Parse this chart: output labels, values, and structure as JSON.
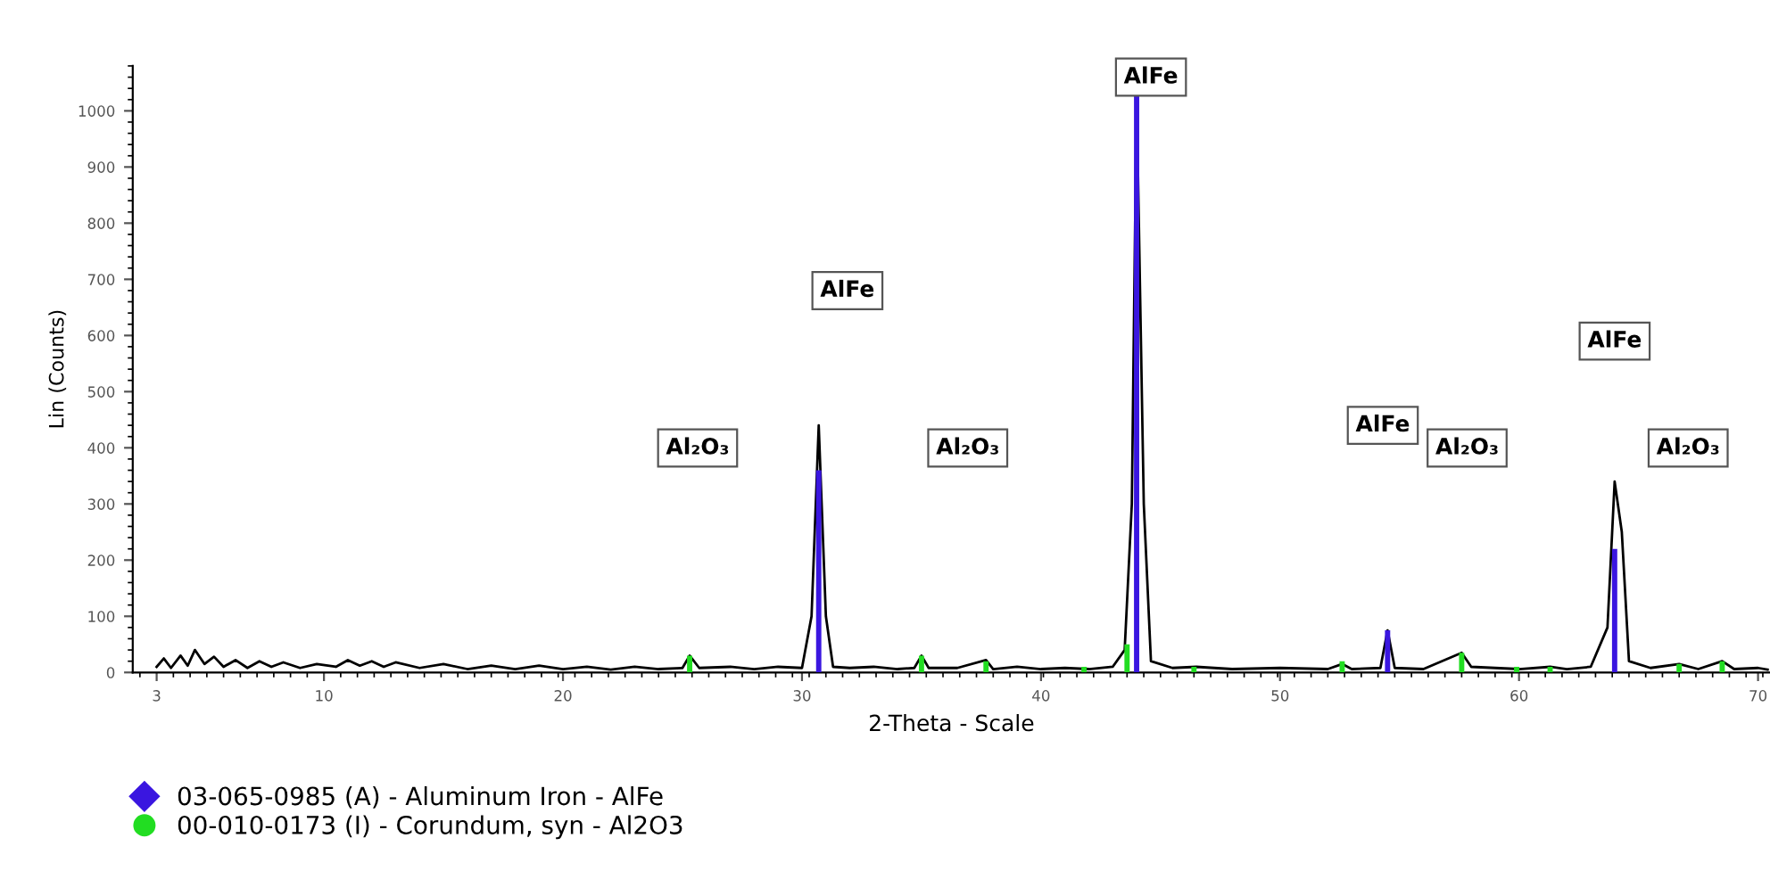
{
  "chart_data": {
    "type": "line",
    "xlabel": "2-Theta - Scale",
    "ylabel": "Lin (Counts)",
    "xlim": [
      2,
      70.5
    ],
    "ylim": [
      0,
      1080
    ],
    "xticks": [
      3,
      10,
      20,
      30,
      40,
      50,
      60,
      70
    ],
    "yticks": [
      0,
      100,
      200,
      300,
      400,
      500,
      600,
      700,
      800,
      900,
      1000
    ],
    "grid": false,
    "legend": "bottom left",
    "marker": "none",
    "line_style": "solid",
    "series": [
      {
        "color": "#000000",
        "x": [
          3,
          3.3,
          3.6,
          4,
          4.3,
          4.6,
          5,
          5.4,
          5.8,
          6.3,
          6.8,
          7.3,
          7.8,
          8.3,
          9,
          9.7,
          10.5,
          11,
          11.5,
          12,
          12.5,
          13,
          14,
          15,
          16,
          17,
          18,
          19,
          20,
          21,
          22,
          23,
          24,
          25,
          25.3,
          25.7,
          27,
          28,
          29,
          30,
          30.4,
          30.7,
          31.0,
          31.3,
          32,
          33,
          34,
          34.7,
          35.0,
          35.3,
          36.5,
          37.7,
          38,
          39,
          40,
          41,
          42,
          43,
          43.5,
          43.8,
          44.0,
          44.3,
          44.6,
          45.5,
          46.5,
          48,
          50,
          52,
          52.6,
          53,
          54.2,
          54.5,
          54.8,
          56,
          57.6,
          58,
          59,
          60,
          61.3,
          62,
          63,
          63.7,
          64.0,
          64.3,
          64.6,
          65.5,
          66.7,
          67.5,
          68.5,
          69,
          70,
          70.4
        ],
        "values": [
          10,
          25,
          8,
          30,
          12,
          40,
          15,
          28,
          10,
          22,
          8,
          20,
          10,
          18,
          8,
          15,
          10,
          22,
          12,
          20,
          10,
          18,
          8,
          15,
          6,
          12,
          6,
          12,
          6,
          10,
          5,
          10,
          6,
          8,
          30,
          8,
          10,
          6,
          10,
          8,
          100,
          440,
          100,
          10,
          8,
          10,
          6,
          8,
          30,
          8,
          8,
          22,
          6,
          10,
          6,
          8,
          6,
          10,
          40,
          300,
          1030,
          300,
          20,
          8,
          10,
          6,
          8,
          6,
          15,
          6,
          8,
          75,
          8,
          6,
          35,
          10,
          8,
          6,
          10,
          6,
          10,
          80,
          340,
          250,
          20,
          8,
          15,
          6,
          20,
          6,
          8,
          5
        ]
      },
      {
        "type": "bar",
        "name": "03-065-0985 (A) - Aluminum Iron - AlFe",
        "color": "#3a16e0",
        "marker": "diamond",
        "x": [
          30.7,
          44.0,
          54.5,
          64.0
        ],
        "values": [
          360,
          1030,
          75,
          220
        ]
      },
      {
        "type": "bar",
        "name": "00-010-0173 (I) - Corundum, syn - Al2O3",
        "color": "#22dd22",
        "marker": "circle",
        "x": [
          25.3,
          35.0,
          37.7,
          41.8,
          43.6,
          46.4,
          52.6,
          57.6,
          59.9,
          61.3,
          66.7,
          68.5
        ],
        "values": [
          30,
          30,
          20,
          10,
          50,
          10,
          20,
          35,
          10,
          10,
          15,
          20
        ]
      }
    ],
    "annotations": [
      "Al₂O₃",
      {
        "text": "AlFe",
        "x": 31.9,
        "y": 680
      },
      "Al₂O₃",
      {
        "text": "AlFe",
        "x": 44.6,
        "y": 1060
      },
      {
        "text": "AlFe",
        "x": 54.3,
        "y": 440
      },
      "Al₂O₃",
      {
        "text": "AlFe",
        "x": 64.0,
        "y": 590
      },
      "Al₂O₃"
    ]
  }
}
